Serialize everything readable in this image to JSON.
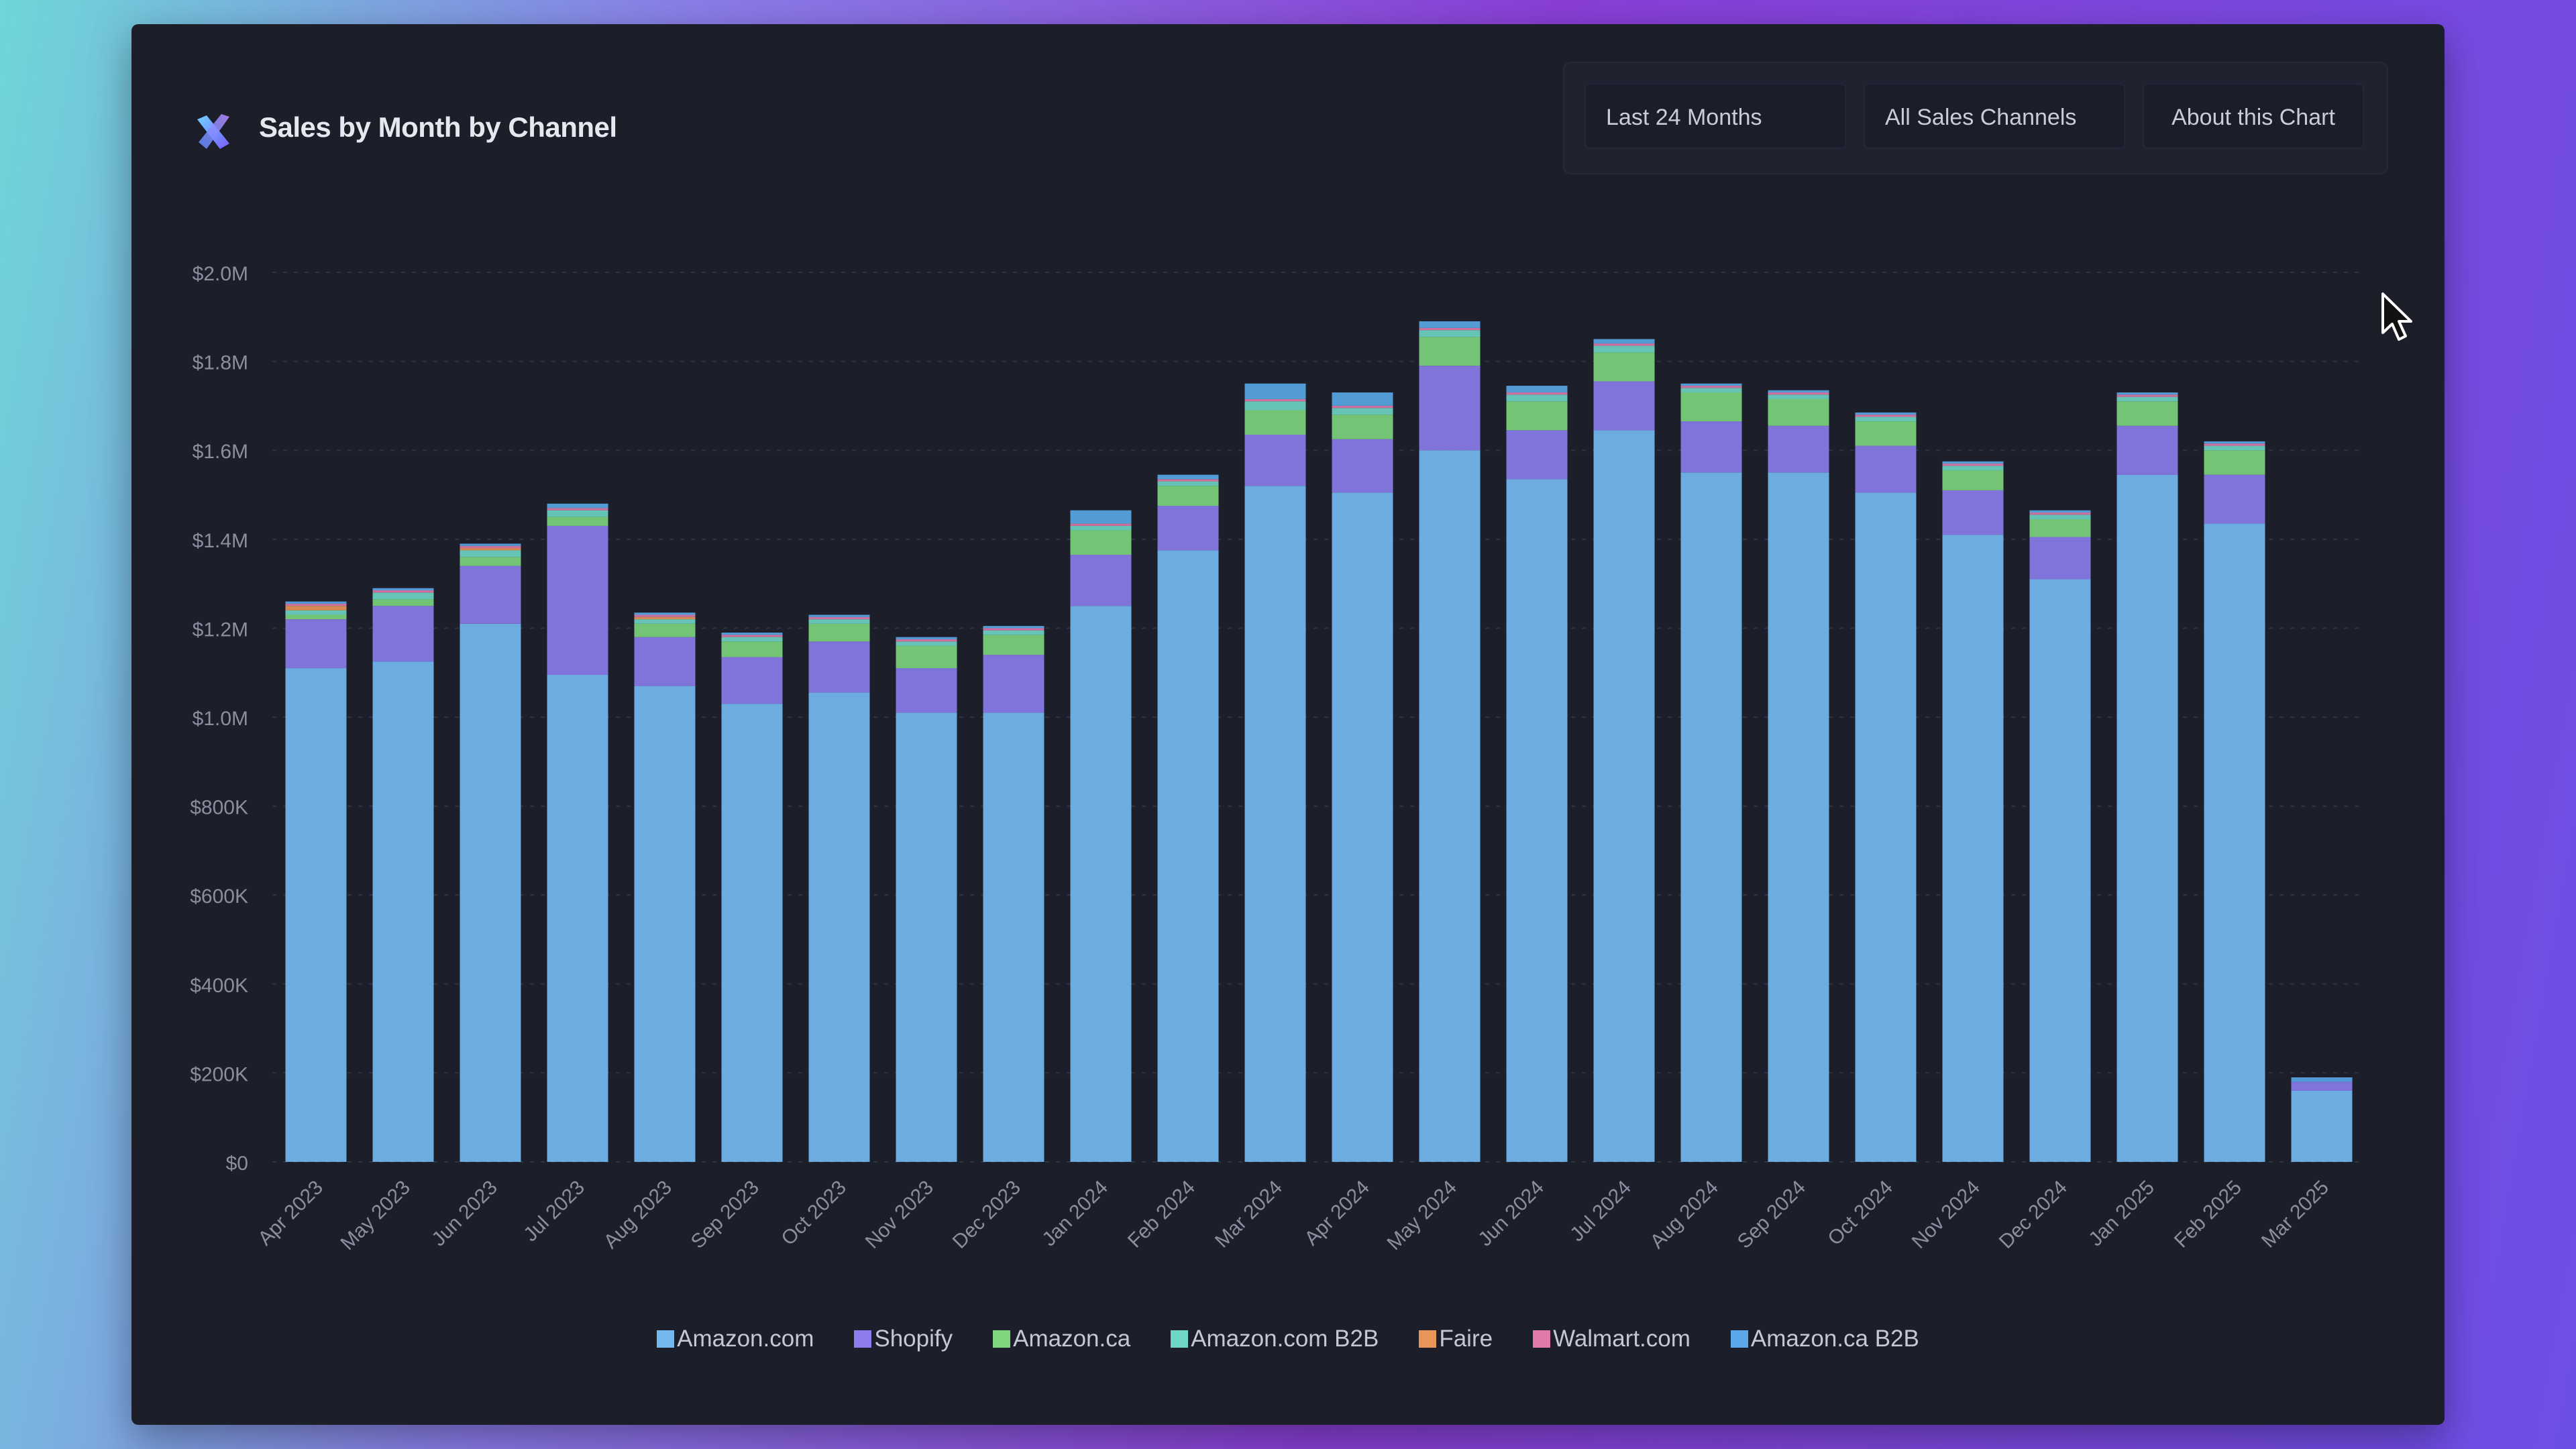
{
  "header": {
    "title": "Sales by Month by Channel"
  },
  "controls": {
    "range_label": "Last 24 Months",
    "channel_label": "All Sales Channels",
    "about_label": "About this Chart"
  },
  "colors": {
    "panel": "#1c1f2a",
    "grid": "#2e3342",
    "tick": "#8a8fa0"
  },
  "chart_data": {
    "type": "bar",
    "stacked": true,
    "title": "Sales by Month by Channel",
    "ylim": [
      0,
      2000000
    ],
    "yticks": [
      0,
      200000,
      400000,
      600000,
      800000,
      1000000,
      1200000,
      1400000,
      1600000,
      1800000,
      2000000
    ],
    "ytick_labels": [
      "$0",
      "$200K",
      "$400K",
      "$600K",
      "$800K",
      "$1.0M",
      "$1.2M",
      "$1.4M",
      "$1.6M",
      "$1.8M",
      "$2.0M"
    ],
    "categories": [
      "Apr 2023",
      "May 2023",
      "Jun 2023",
      "Jul 2023",
      "Aug 2023",
      "Sep 2023",
      "Oct 2023",
      "Nov 2023",
      "Dec 2023",
      "Jan 2024",
      "Feb 2024",
      "Mar 2024",
      "Apr 2024",
      "May 2024",
      "Jun 2024",
      "Jul 2024",
      "Aug 2024",
      "Sep 2024",
      "Oct 2024",
      "Nov 2024",
      "Dec 2024",
      "Jan 2025",
      "Feb 2025",
      "Mar 2025"
    ],
    "legend_position": "bottom",
    "series": [
      {
        "name": "Amazon.com",
        "color": "#74b8f0",
        "values": [
          1110000,
          1125000,
          1210000,
          1095000,
          1070000,
          1030000,
          1055000,
          1010000,
          1010000,
          1250000,
          1375000,
          1520000,
          1505000,
          1600000,
          1535000,
          1645000,
          1550000,
          1550000,
          1505000,
          1410000,
          1310000,
          1545000,
          1435000,
          160000
        ]
      },
      {
        "name": "Shopify",
        "color": "#8c7cec",
        "values": [
          110000,
          125000,
          130000,
          335000,
          110000,
          105000,
          115000,
          100000,
          130000,
          115000,
          100000,
          115000,
          120000,
          190000,
          110000,
          110000,
          115000,
          105000,
          105000,
          100000,
          95000,
          110000,
          110000,
          20000
        ]
      },
      {
        "name": "Amazon.ca",
        "color": "#7ed67e",
        "values": [
          10000,
          15000,
          20000,
          20000,
          30000,
          35000,
          40000,
          50000,
          45000,
          55000,
          45000,
          55000,
          55000,
          65000,
          65000,
          65000,
          65000,
          60000,
          55000,
          45000,
          40000,
          55000,
          55000,
          0
        ]
      },
      {
        "name": "Amazon.com B2B",
        "color": "#6ed6c4",
        "values": [
          10000,
          15000,
          15000,
          15000,
          10000,
          10000,
          10000,
          10000,
          10000,
          10000,
          10000,
          20000,
          15000,
          15000,
          15000,
          15000,
          10000,
          10000,
          10000,
          10000,
          10000,
          10000,
          10000,
          0
        ]
      },
      {
        "name": "Faire",
        "color": "#e89658",
        "values": [
          10000,
          0,
          5000,
          0,
          5000,
          0,
          0,
          0,
          0,
          0,
          0,
          0,
          0,
          0,
          0,
          0,
          0,
          0,
          0,
          0,
          0,
          0,
          0,
          0
        ]
      },
      {
        "name": "Walmart.com",
        "color": "#e07aaa",
        "values": [
          5000,
          5000,
          5000,
          5000,
          5000,
          5000,
          5000,
          5000,
          5000,
          5000,
          5000,
          5000,
          5000,
          5000,
          5000,
          5000,
          5000,
          5000,
          5000,
          5000,
          5000,
          5000,
          5000,
          0
        ]
      },
      {
        "name": "Amazon.ca B2B",
        "color": "#5aa8e8",
        "values": [
          5000,
          5000,
          5000,
          10000,
          5000,
          5000,
          5000,
          5000,
          5000,
          30000,
          10000,
          35000,
          30000,
          15000,
          15000,
          10000,
          5000,
          5000,
          5000,
          5000,
          5000,
          5000,
          5000,
          10000
        ]
      }
    ]
  }
}
